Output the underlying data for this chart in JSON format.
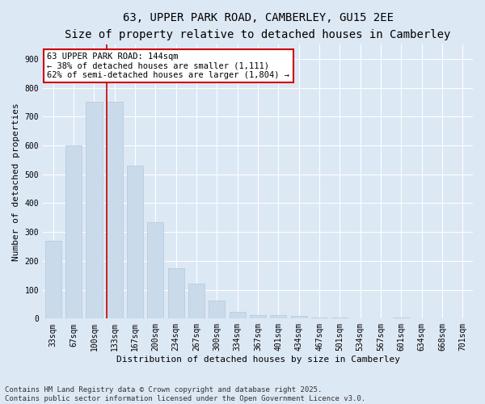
{
  "title_line1": "63, UPPER PARK ROAD, CAMBERLEY, GU15 2EE",
  "title_line2": "Size of property relative to detached houses in Camberley",
  "xlabel": "Distribution of detached houses by size in Camberley",
  "ylabel": "Number of detached properties",
  "categories": [
    "33sqm",
    "67sqm",
    "100sqm",
    "133sqm",
    "167sqm",
    "200sqm",
    "234sqm",
    "267sqm",
    "300sqm",
    "334sqm",
    "367sqm",
    "401sqm",
    "434sqm",
    "467sqm",
    "501sqm",
    "534sqm",
    "567sqm",
    "601sqm",
    "634sqm",
    "668sqm",
    "701sqm"
  ],
  "values": [
    270,
    600,
    750,
    750,
    530,
    335,
    175,
    120,
    62,
    22,
    12,
    12,
    10,
    5,
    5,
    0,
    0,
    5,
    0,
    0,
    0
  ],
  "bar_color": "#c9daea",
  "bar_edge_color": "#b0c8dc",
  "highlight_line_color": "#cc0000",
  "highlight_bar_index": 3,
  "annotation_text": "63 UPPER PARK ROAD: 144sqm\n← 38% of detached houses are smaller (1,111)\n62% of semi-detached houses are larger (1,804) →",
  "annotation_box_facecolor": "#ffffff",
  "annotation_box_edgecolor": "#cc0000",
  "ylim": [
    0,
    950
  ],
  "yticks": [
    0,
    100,
    200,
    300,
    400,
    500,
    600,
    700,
    800,
    900
  ],
  "background_color": "#dde8f5",
  "grid_color": "#ffffff",
  "footer_line1": "Contains HM Land Registry data © Crown copyright and database right 2025.",
  "footer_line2": "Contains public sector information licensed under the Open Government Licence v3.0.",
  "title_fontsize": 10,
  "subtitle_fontsize": 9,
  "axis_label_fontsize": 8,
  "tick_fontsize": 7,
  "annotation_fontsize": 7.5,
  "footer_fontsize": 6.5
}
